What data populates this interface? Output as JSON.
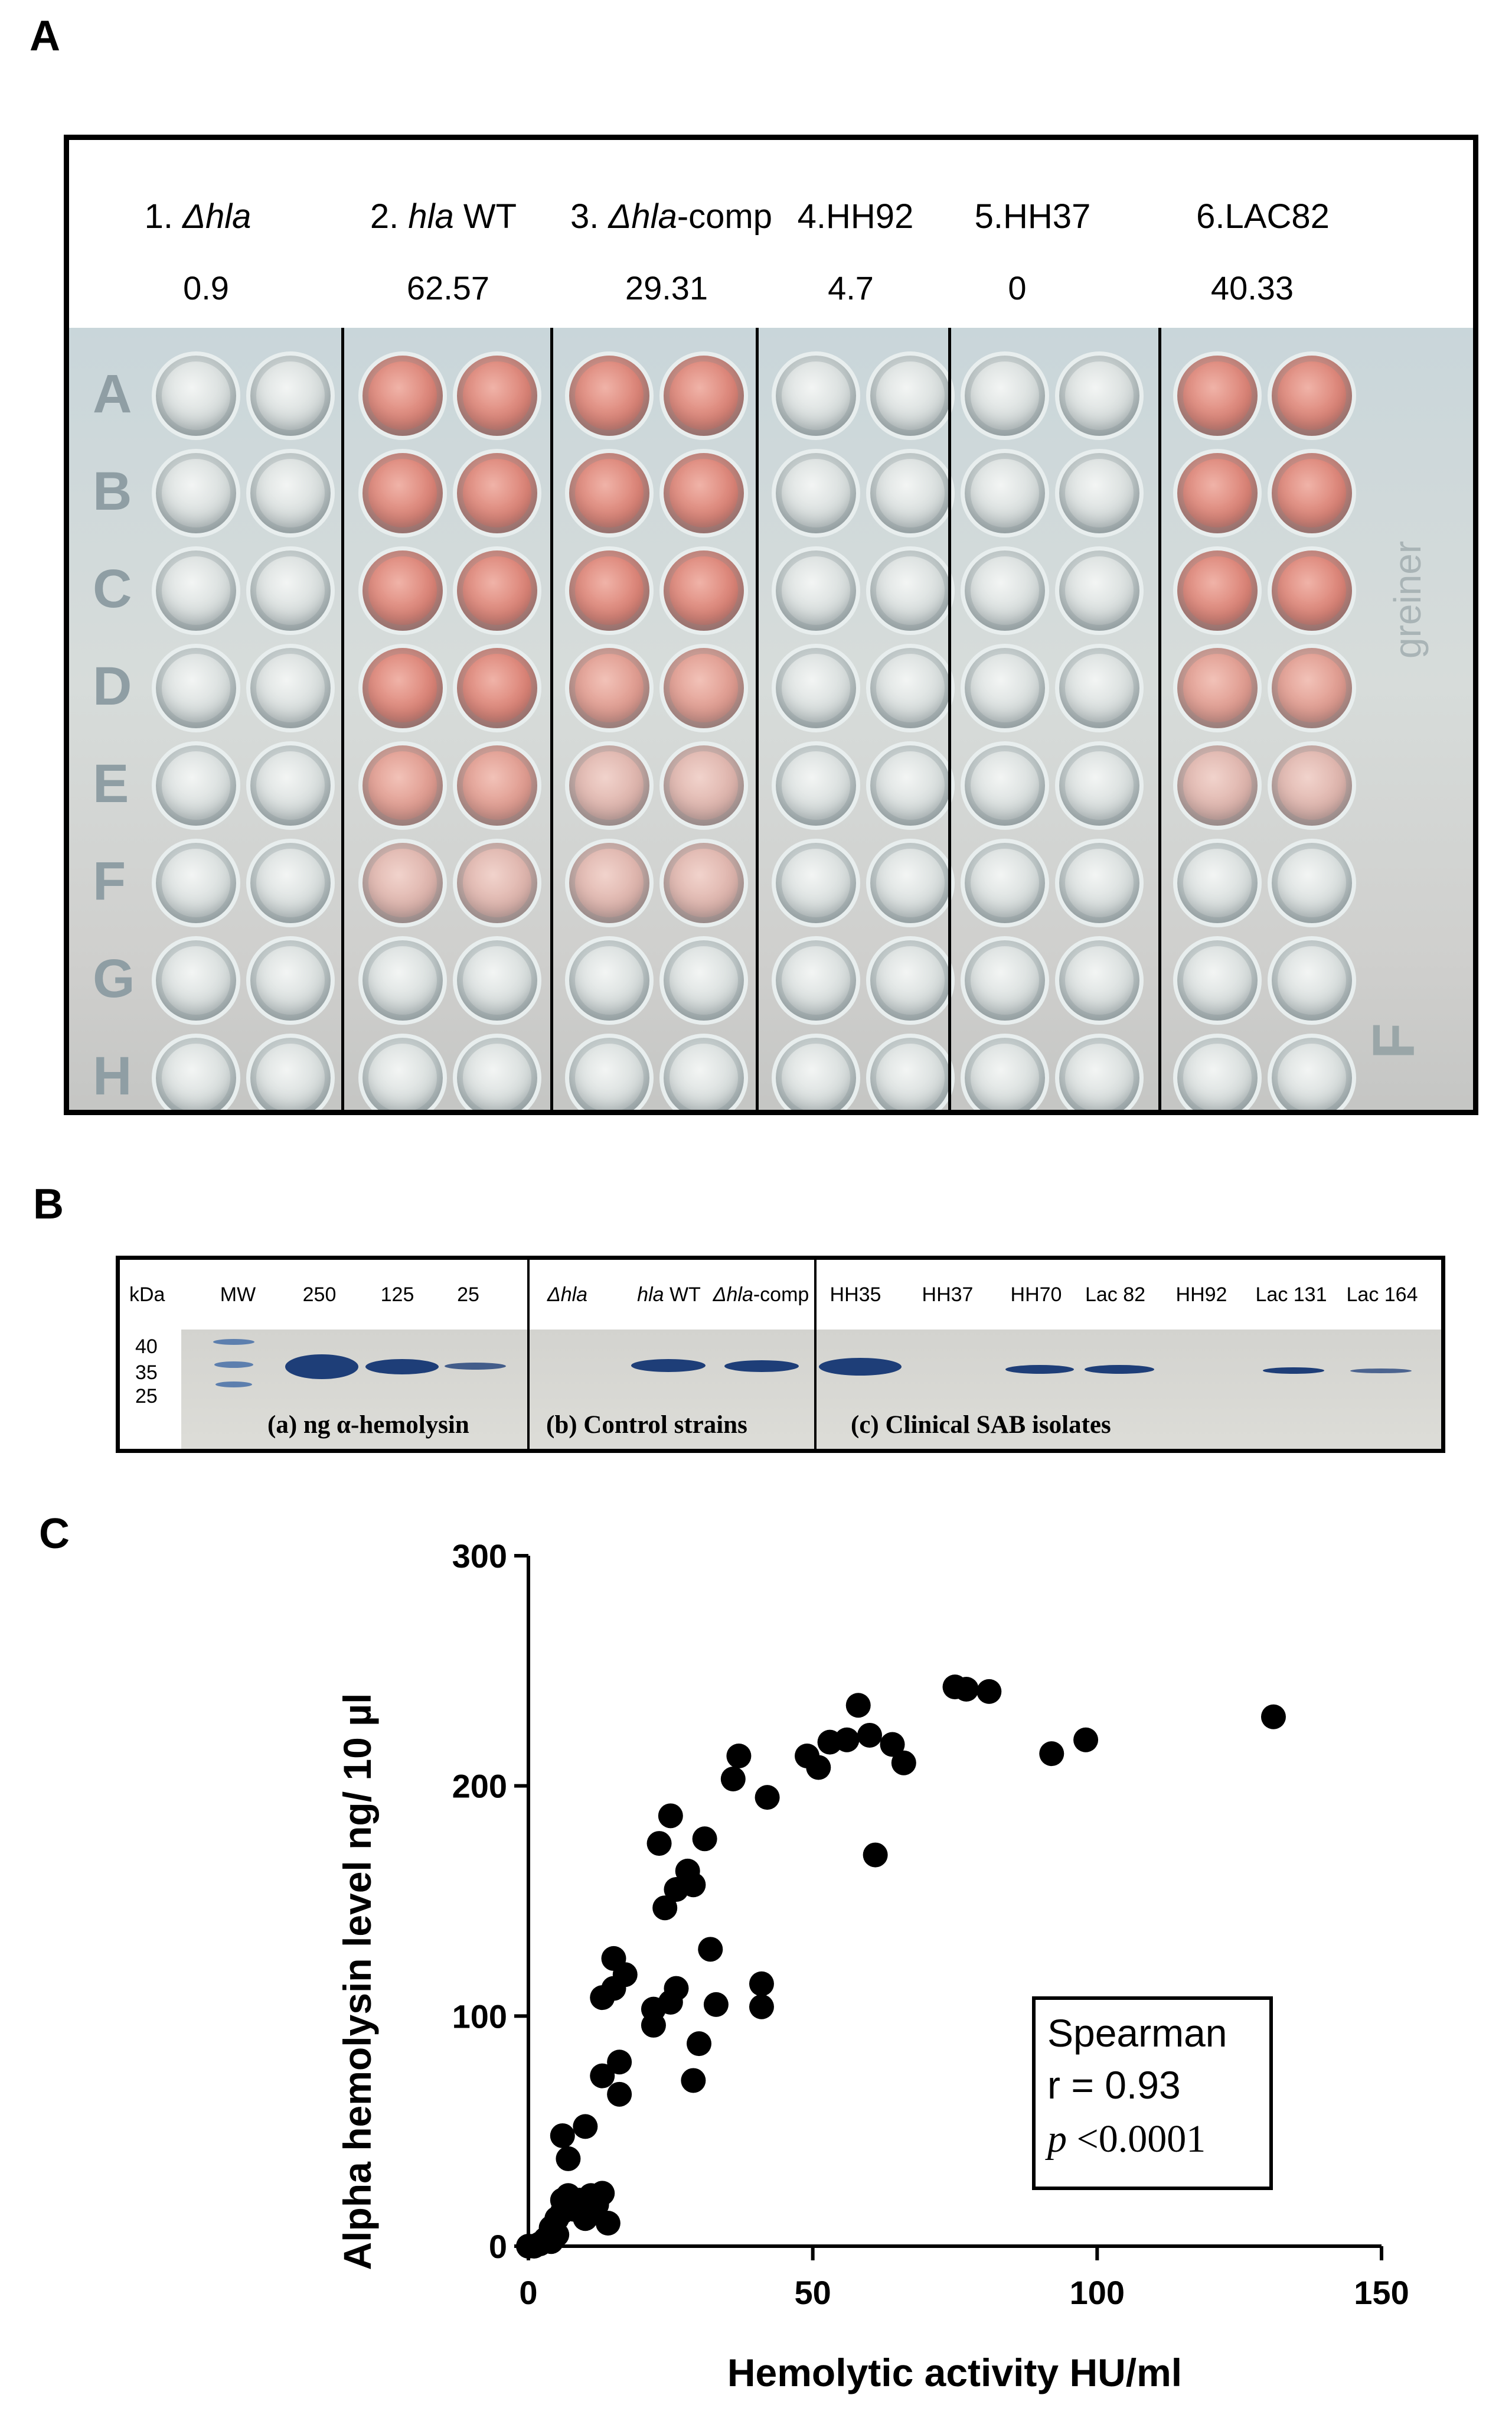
{
  "panel_labels": {
    "a": "A",
    "b": "B",
    "c": "C"
  },
  "panel_a": {
    "strains": [
      {
        "num": "1.",
        "name": "Δhla",
        "suffix": "",
        "value": "0.9"
      },
      {
        "num": "2.",
        "name": "hla",
        "suffix": " WT",
        "value": "62.57"
      },
      {
        "num": "3.",
        "name": "Δhla",
        "suffix": "-comp",
        "value": "29.31"
      },
      {
        "num": "4.",
        "name": "",
        "suffix": "HH92",
        "value": "4.7"
      },
      {
        "num": "5.",
        "name": "",
        "suffix": "HH37",
        "value": "0"
      },
      {
        "num": "6.",
        "name": "",
        "suffix": "LAC82",
        "value": "40.33"
      }
    ],
    "row_letters": [
      "A",
      "B",
      "C",
      "D",
      "E",
      "F",
      "G",
      "H"
    ],
    "plate_side_marks": [
      "greiner",
      "F"
    ]
  },
  "panel_b": {
    "kda_label": "kDa",
    "mw_markers": [
      "40",
      "35",
      "25"
    ],
    "lanes": [
      "MW",
      "250",
      "125",
      "25",
      "Δhla",
      "hla WT",
      "Δhla-comp",
      "HH35",
      "HH37",
      "HH70",
      "Lac 82",
      "HH92",
      "Lac 131",
      "Lac 164"
    ],
    "sections": [
      "(a) ng α-hemolysin",
      "(b) Control strains",
      "(c) Clinical SAB isolates"
    ]
  },
  "chart_data": {
    "type": "scatter",
    "title": "",
    "xlabel": "Hemolytic activity HU/ml",
    "ylabel": "Alpha hemolysin level ng/ 10 µl",
    "xlim": [
      0,
      150
    ],
    "ylim": [
      0,
      300
    ],
    "xticks": [
      0,
      50,
      100,
      150
    ],
    "yticks": [
      0,
      100,
      200,
      300
    ],
    "points": [
      [
        0,
        0
      ],
      [
        1,
        0
      ],
      [
        2,
        1
      ],
      [
        3,
        3
      ],
      [
        4,
        2
      ],
      [
        4,
        8
      ],
      [
        5,
        12
      ],
      [
        5,
        5
      ],
      [
        6,
        20
      ],
      [
        6,
        15
      ],
      [
        7,
        22
      ],
      [
        6,
        48
      ],
      [
        7,
        38
      ],
      [
        8,
        16
      ],
      [
        9,
        20
      ],
      [
        10,
        52
      ],
      [
        10,
        12
      ],
      [
        11,
        22
      ],
      [
        12,
        18
      ],
      [
        13,
        23
      ],
      [
        14,
        10
      ],
      [
        13,
        74
      ],
      [
        13,
        108
      ],
      [
        15,
        112
      ],
      [
        15,
        125
      ],
      [
        16,
        80
      ],
      [
        16,
        66
      ],
      [
        17,
        118
      ],
      [
        22,
        96
      ],
      [
        22,
        103
      ],
      [
        23,
        175
      ],
      [
        24,
        147
      ],
      [
        25,
        106
      ],
      [
        26,
        112
      ],
      [
        25,
        187
      ],
      [
        26,
        155
      ],
      [
        28,
        163
      ],
      [
        29,
        157
      ],
      [
        29,
        72
      ],
      [
        30,
        88
      ],
      [
        31,
        177
      ],
      [
        32,
        129
      ],
      [
        33,
        105
      ],
      [
        36,
        203
      ],
      [
        37,
        213
      ],
      [
        41,
        114
      ],
      [
        41,
        104
      ],
      [
        42,
        195
      ],
      [
        49,
        213
      ],
      [
        51,
        208
      ],
      [
        53,
        219
      ],
      [
        56,
        220
      ],
      [
        58,
        235
      ],
      [
        60,
        222
      ],
      [
        61,
        170
      ],
      [
        64,
        218
      ],
      [
        66,
        210
      ],
      [
        75,
        243
      ],
      [
        77,
        242
      ],
      [
        81,
        241
      ],
      [
        92,
        214
      ],
      [
        98,
        220
      ],
      [
        131,
        230
      ]
    ],
    "legend": {
      "line1": "Spearman",
      "line2": "r = 0.93",
      "line3_p": "p",
      "line3_rest": " <0.0001"
    }
  }
}
